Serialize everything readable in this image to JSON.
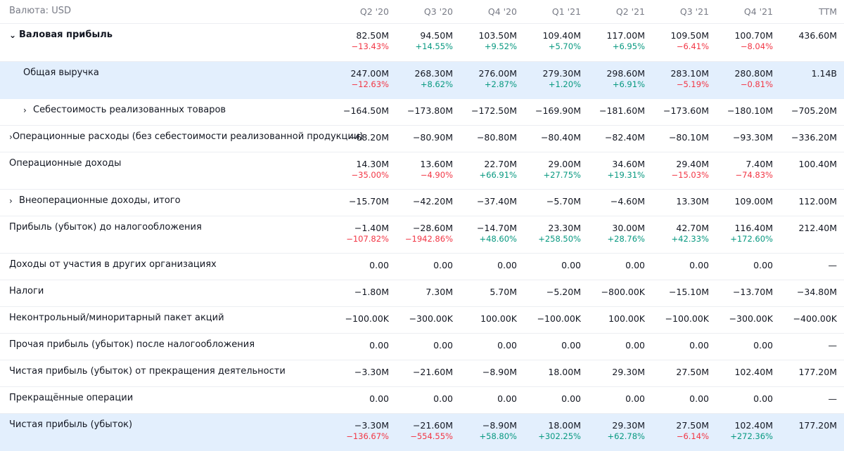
{
  "header": {
    "currency_label": "Валюта: USD",
    "periods": [
      "Q2 '20",
      "Q3 '20",
      "Q4 '20",
      "Q1 '21",
      "Q2 '21",
      "Q3 '21",
      "Q4 '21",
      "TTM"
    ]
  },
  "rows": [
    {
      "id": "gross-profit",
      "label": "Валовая прибыль",
      "chevron": "⌄",
      "indent": 0,
      "bold": true,
      "highlight": false,
      "height": 54,
      "values": [
        "82.50M",
        "94.50M",
        "103.50M",
        "109.40M",
        "117.00M",
        "109.50M",
        "100.70M",
        "436.60M"
      ],
      "changes": [
        "−13.43%",
        "+14.55%",
        "+9.52%",
        "+5.70%",
        "+6.95%",
        "−6.41%",
        "−8.04%",
        ""
      ]
    },
    {
      "id": "total-revenue",
      "label": "Общая выручка",
      "chevron": "",
      "indent": 1,
      "bold": false,
      "highlight": true,
      "height": 53,
      "values": [
        "247.00M",
        "268.30M",
        "276.00M",
        "279.30M",
        "298.60M",
        "283.10M",
        "280.80M",
        "1.14B"
      ],
      "changes": [
        "−12.63%",
        "+8.62%",
        "+2.87%",
        "+1.20%",
        "+6.91%",
        "−5.19%",
        "−0.81%",
        ""
      ]
    },
    {
      "id": "cogs",
      "label": "Себестоимость реализованных товаров",
      "chevron": "›",
      "indent": 1,
      "bold": false,
      "highlight": false,
      "height": 38,
      "values": [
        "−164.50M",
        "−173.80M",
        "−172.50M",
        "−169.90M",
        "−181.60M",
        "−173.60M",
        "−180.10M",
        "−705.20M"
      ],
      "changes": [
        "",
        "",
        "",
        "",
        "",
        "",
        "",
        ""
      ]
    },
    {
      "id": "operating-expenses",
      "label": "Операционные расходы (без себестоимости реализованной продукции)",
      "chevron": "›",
      "indent": 0,
      "bold": false,
      "highlight": false,
      "height": 38,
      "values": [
        "−68.20M",
        "−80.90M",
        "−80.80M",
        "−80.40M",
        "−82.40M",
        "−80.10M",
        "−93.30M",
        "−336.20M"
      ],
      "changes": [
        "",
        "",
        "",
        "",
        "",
        "",
        "",
        ""
      ]
    },
    {
      "id": "operating-income",
      "label": "Операционные доходы",
      "chevron": "",
      "indent": 0,
      "bold": false,
      "highlight": false,
      "height": 53,
      "values": [
        "14.30M",
        "13.60M",
        "22.70M",
        "29.00M",
        "34.60M",
        "29.40M",
        "7.40M",
        "100.40M"
      ],
      "changes": [
        "−35.00%",
        "−4.90%",
        "+66.91%",
        "+27.75%",
        "+19.31%",
        "−15.03%",
        "−74.83%",
        ""
      ]
    },
    {
      "id": "non-operating-income",
      "label": "Внеоперационные доходы, итого",
      "chevron": "›",
      "indent": 0,
      "bold": false,
      "highlight": false,
      "height": 38,
      "values": [
        "−15.70M",
        "−42.20M",
        "−37.40M",
        "−5.70M",
        "−4.60M",
        "13.30M",
        "109.00M",
        "112.00M"
      ],
      "changes": [
        "",
        "",
        "",
        "",
        "",
        "",
        "",
        ""
      ]
    },
    {
      "id": "pretax-income",
      "label": "Прибыль (убыток) до налогообложения",
      "chevron": "",
      "indent": 0,
      "bold": false,
      "highlight": false,
      "height": 53,
      "values": [
        "−1.40M",
        "−28.60M",
        "−14.70M",
        "23.30M",
        "30.00M",
        "42.70M",
        "116.40M",
        "212.40M"
      ],
      "changes": [
        "−107.82%",
        "−1942.86%",
        "+48.60%",
        "+258.50%",
        "+28.76%",
        "+42.33%",
        "+172.60%",
        ""
      ]
    },
    {
      "id": "equity-affiliates",
      "label": "Доходы от участия в других организациях",
      "chevron": "",
      "indent": 0,
      "bold": false,
      "highlight": false,
      "height": 38,
      "values": [
        "0.00",
        "0.00",
        "0.00",
        "0.00",
        "0.00",
        "0.00",
        "0.00",
        "—"
      ],
      "changes": [
        "",
        "",
        "",
        "",
        "",
        "",
        "",
        ""
      ]
    },
    {
      "id": "taxes",
      "label": "Налоги",
      "chevron": "",
      "indent": 0,
      "bold": false,
      "highlight": false,
      "height": 38,
      "values": [
        "−1.80M",
        "7.30M",
        "5.70M",
        "−5.20M",
        "−800.00K",
        "−15.10M",
        "−13.70M",
        "−34.80M"
      ],
      "changes": [
        "",
        "",
        "",
        "",
        "",
        "",
        "",
        ""
      ]
    },
    {
      "id": "minority-interest",
      "label": "Неконтрольный/миноритарный пакет акций",
      "chevron": "",
      "indent": 0,
      "bold": false,
      "highlight": false,
      "height": 38,
      "values": [
        "−100.00K",
        "−300.00K",
        "100.00K",
        "−100.00K",
        "100.00K",
        "−100.00K",
        "−300.00K",
        "−400.00K"
      ],
      "changes": [
        "",
        "",
        "",
        "",
        "",
        "",
        "",
        ""
      ]
    },
    {
      "id": "other-after-tax",
      "label": "Прочая прибыль (убыток) после налогообложения",
      "chevron": "",
      "indent": 0,
      "bold": false,
      "highlight": false,
      "height": 38,
      "values": [
        "0.00",
        "0.00",
        "0.00",
        "0.00",
        "0.00",
        "0.00",
        "0.00",
        "—"
      ],
      "changes": [
        "",
        "",
        "",
        "",
        "",
        "",
        "",
        ""
      ]
    },
    {
      "id": "net-income-continuing",
      "label": "Чистая прибыль (убыток) от прекращения деятельности",
      "chevron": "",
      "indent": 0,
      "bold": false,
      "highlight": false,
      "height": 38,
      "values": [
        "−3.30M",
        "−21.60M",
        "−8.90M",
        "18.00M",
        "29.30M",
        "27.50M",
        "102.40M",
        "177.20M"
      ],
      "changes": [
        "",
        "",
        "",
        "",
        "",
        "",
        "",
        ""
      ]
    },
    {
      "id": "discontinued-operations",
      "label": "Прекращённые операции",
      "chevron": "",
      "indent": 0,
      "bold": false,
      "highlight": false,
      "height": 38,
      "values": [
        "0.00",
        "0.00",
        "0.00",
        "0.00",
        "0.00",
        "0.00",
        "0.00",
        "—"
      ],
      "changes": [
        "",
        "",
        "",
        "",
        "",
        "",
        "",
        ""
      ]
    },
    {
      "id": "net-income",
      "label": "Чистая прибыль (убыток)",
      "chevron": "",
      "indent": 0,
      "bold": false,
      "highlight": true,
      "height": 53,
      "values": [
        "−3.30M",
        "−21.60M",
        "−8.90M",
        "18.00M",
        "29.30M",
        "27.50M",
        "102.40M",
        "177.20M"
      ],
      "changes": [
        "−136.67%",
        "−554.55%",
        "+58.80%",
        "+302.25%",
        "+62.78%",
        "−6.14%",
        "+272.36%",
        ""
      ]
    }
  ],
  "colors": {
    "positive": "#089981",
    "negative": "#f23645",
    "highlight": "#e3effd",
    "muted": "#787b86"
  }
}
